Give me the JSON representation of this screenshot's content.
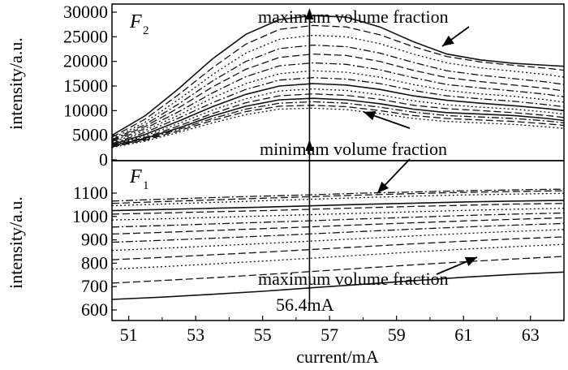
{
  "chart_data": [
    {
      "type": "line",
      "panel_label": "F",
      "panel_sub": "2",
      "ylabel": "intensity/a.u.",
      "xlim": [
        50.5,
        64
      ],
      "ylim": [
        0,
        30000
      ],
      "y_ticks": [
        "0",
        "5000",
        "10000",
        "15000",
        "20000",
        "25000",
        "30000"
      ],
      "annotations": [
        "maximum volume fraction",
        "minimum volume fraction"
      ],
      "x": [
        50.5,
        51.5,
        52.5,
        53.5,
        54.5,
        55.5,
        56.5,
        57.5,
        58.5,
        59.5,
        60.5,
        61.5,
        62.5,
        63.5,
        64
      ],
      "series": [
        {
          "style": "solid",
          "values": [
            5000,
            9000,
            14500,
            20500,
            25500,
            28500,
            29300,
            29000,
            27000,
            24000,
            21500,
            20300,
            19600,
            19200,
            19000
          ]
        },
        {
          "style": "dash",
          "values": [
            4600,
            8300,
            13300,
            18700,
            23500,
            26500,
            27300,
            27000,
            25400,
            23000,
            21000,
            19900,
            19200,
            18600,
            18200
          ]
        },
        {
          "style": "dot",
          "values": [
            4300,
            7700,
            12300,
            17300,
            21700,
            24500,
            25300,
            25000,
            23600,
            21500,
            19700,
            18700,
            18000,
            17300,
            16800
          ]
        },
        {
          "style": "dashdot",
          "values": [
            4100,
            7200,
            11400,
            16000,
            20000,
            22600,
            23300,
            23000,
            21700,
            19800,
            18100,
            17200,
            16500,
            15800,
            15300
          ]
        },
        {
          "style": "dash",
          "values": [
            3900,
            6800,
            10600,
            14800,
            18400,
            20800,
            21500,
            21200,
            20000,
            18200,
            16700,
            15900,
            15200,
            14500,
            14000
          ]
        },
        {
          "style": "dashdot",
          "values": [
            3700,
            6400,
            9800,
            13600,
            16900,
            19100,
            19700,
            19400,
            18300,
            16700,
            15300,
            14600,
            14000,
            13300,
            12800
          ]
        },
        {
          "style": "dot",
          "values": [
            3500,
            6000,
            9100,
            12600,
            15500,
            17500,
            18100,
            17800,
            16800,
            15300,
            14100,
            13400,
            12900,
            12200,
            11700
          ]
        },
        {
          "style": "dashdot",
          "values": [
            3300,
            5600,
            8500,
            11600,
            14300,
            16200,
            16700,
            16400,
            15500,
            14100,
            13000,
            12400,
            11900,
            11200,
            10800
          ]
        },
        {
          "style": "solid",
          "values": [
            3100,
            5200,
            7900,
            10800,
            13300,
            15000,
            15500,
            15200,
            14300,
            13000,
            12100,
            11500,
            11000,
            10400,
            10000
          ]
        },
        {
          "style": "dot",
          "values": [
            3000,
            4900,
            7400,
            10100,
            12400,
            14000,
            14400,
            14100,
            13200,
            12000,
            11200,
            10700,
            10300,
            9700,
            9300
          ]
        },
        {
          "style": "dash",
          "values": [
            2900,
            4600,
            6900,
            9400,
            11600,
            13000,
            13400,
            13100,
            12300,
            11100,
            10400,
            10000,
            9600,
            9000,
            8600
          ]
        },
        {
          "style": "solid",
          "values": [
            2800,
            4400,
            6500,
            8900,
            10900,
            12200,
            12500,
            12200,
            11400,
            10300,
            9600,
            9300,
            9000,
            8400,
            8000
          ]
        },
        {
          "style": "dashdot",
          "values": [
            2700,
            4200,
            6200,
            8400,
            10300,
            11500,
            11800,
            11500,
            10700,
            9700,
            9000,
            8700,
            8400,
            7900,
            7500
          ]
        },
        {
          "style": "dash",
          "values": [
            2600,
            4000,
            5900,
            8000,
            9800,
            10900,
            11100,
            10800,
            10000,
            9000,
            8400,
            8100,
            7800,
            7300,
            7000
          ]
        },
        {
          "style": "dot",
          "values": [
            2500,
            3800,
            5600,
            7500,
            9200,
            10300,
            10500,
            10200,
            9400,
            8400,
            7800,
            7500,
            7200,
            6700,
            6400
          ]
        }
      ]
    },
    {
      "type": "line",
      "panel_label": "F",
      "panel_sub": "1",
      "xlabel": "current/mA",
      "ylabel": "intensity/a.u.",
      "xlim": [
        50.5,
        64
      ],
      "ylim": [
        580,
        1180
      ],
      "x_ticks": [
        "51",
        "53",
        "55",
        "57",
        "59",
        "61",
        "63"
      ],
      "y_ticks": [
        "600",
        "700",
        "800",
        "900",
        "1000",
        "1100"
      ],
      "annotations": [
        "maximum volume fraction",
        "56.4mA"
      ],
      "marker_x": 56.4,
      "x": [
        50.5,
        52,
        53.5,
        55,
        56.5,
        58,
        59.5,
        61,
        62.5,
        64
      ],
      "series": [
        {
          "style": "dashdot",
          "values": [
            1066,
            1074,
            1081,
            1087,
            1093,
            1100,
            1105,
            1110,
            1114,
            1117
          ]
        },
        {
          "style": "dash",
          "values": [
            1056,
            1064,
            1071,
            1078,
            1085,
            1092,
            1098,
            1103,
            1107,
            1110
          ]
        },
        {
          "style": "dot",
          "values": [
            1046,
            1053,
            1060,
            1067,
            1074,
            1081,
            1087,
            1092,
            1096,
            1099
          ]
        },
        {
          "style": "solid",
          "values": [
            1025,
            1030,
            1035,
            1040,
            1046,
            1052,
            1057,
            1062,
            1066,
            1069
          ]
        },
        {
          "style": "dash",
          "values": [
            1010,
            1015,
            1020,
            1025,
            1031,
            1037,
            1043,
            1048,
            1053,
            1056
          ]
        },
        {
          "style": "dot",
          "values": [
            985,
            990,
            996,
            1002,
            1008,
            1014,
            1020,
            1026,
            1031,
            1035
          ]
        },
        {
          "style": "dashdot",
          "values": [
            955,
            961,
            968,
            975,
            982,
            990,
            997,
            1004,
            1010,
            1015
          ]
        },
        {
          "style": "dash",
          "values": [
            925,
            932,
            940,
            948,
            956,
            965,
            973,
            981,
            988,
            994
          ]
        },
        {
          "style": "dashdot",
          "values": [
            890,
            898,
            907,
            916,
            926,
            936,
            946,
            955,
            963,
            970
          ]
        },
        {
          "style": "dot",
          "values": [
            855,
            864,
            874,
            884,
            895,
            906,
            917,
            927,
            936,
            944
          ]
        },
        {
          "style": "dash",
          "values": [
            815,
            825,
            836,
            847,
            859,
            871,
            883,
            894,
            904,
            913
          ]
        },
        {
          "style": "dot",
          "values": [
            775,
            785,
            797,
            809,
            822,
            835,
            848,
            860,
            871,
            881
          ]
        },
        {
          "style": "dash",
          "values": [
            715,
            726,
            738,
            751,
            765,
            779,
            793,
            806,
            818,
            829
          ]
        },
        {
          "style": "solid",
          "values": [
            645,
            655,
            667,
            680,
            695,
            710,
            725,
            740,
            752,
            762
          ]
        }
      ]
    }
  ]
}
